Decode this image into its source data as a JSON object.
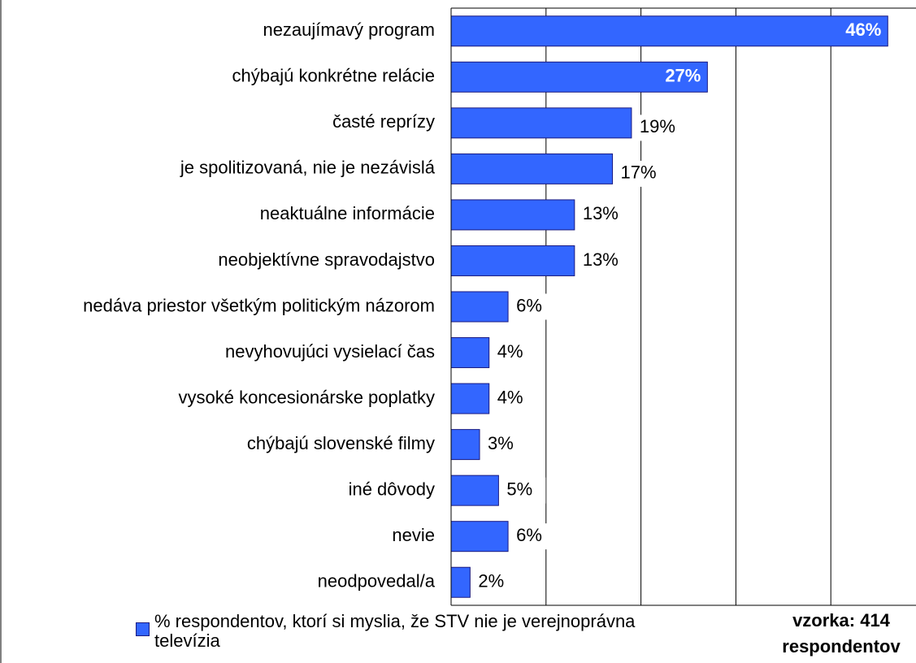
{
  "chart_data": {
    "type": "bar",
    "orientation": "horizontal",
    "categories": [
      "nezaujímavý program",
      "chýbajú konkrétne relácie",
      "časté reprízy",
      "je spolitizovaná, nie je nezávislá",
      "neaktuálne informácie",
      "neobjektívne spravodajstvo",
      "nedáva priestor všetkým politickým názorom",
      "nevyhovujúci vysielací čas",
      "vysoké koncesionárske poplatky",
      "chýbajú slovenské filmy",
      "iné dôvody",
      "nevie",
      "neodpovedal/a"
    ],
    "series": [
      {
        "name": "% respondentov, ktorí si myslia, že STV nie je verejnoprávna televízia",
        "color": "#3366ff",
        "values": [
          46,
          27,
          19,
          17,
          13,
          13,
          6,
          4,
          4,
          3,
          5,
          6,
          2
        ],
        "value_labels": [
          "46%",
          "27%",
          "19%",
          "17%",
          "13%",
          "13%",
          "6%",
          "4%",
          "4%",
          "3%",
          "5%",
          "6%",
          "2%"
        ]
      }
    ],
    "xlim": [
      0,
      50
    ],
    "xticks": [
      0,
      10,
      20,
      30,
      40
    ],
    "grid": true,
    "annotation": "vzorka: 414 respondentov"
  }
}
